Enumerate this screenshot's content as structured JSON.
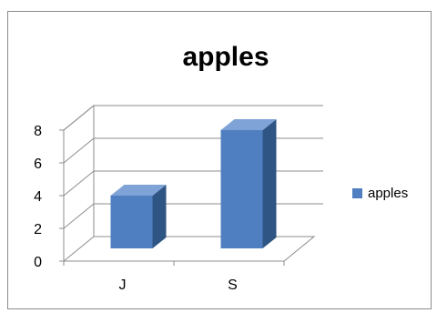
{
  "colors": {
    "bar_front": "#4f7fc0",
    "bar_side": "#2f5585",
    "bar_top": "#7fa3d6",
    "grid": "#8c8c8c",
    "text": "#000000"
  },
  "chart_data": {
    "type": "bar",
    "title": "apples",
    "xlabel": "",
    "ylabel": "",
    "categories": [
      "J",
      "S"
    ],
    "series": [
      {
        "name": "apples",
        "values": [
          4,
          8
        ]
      }
    ],
    "ylim": [
      0,
      8
    ],
    "yticks": [
      "0",
      "2",
      "4",
      "6",
      "8"
    ],
    "grid": true,
    "legend_position": "right",
    "style": "3d-column"
  }
}
